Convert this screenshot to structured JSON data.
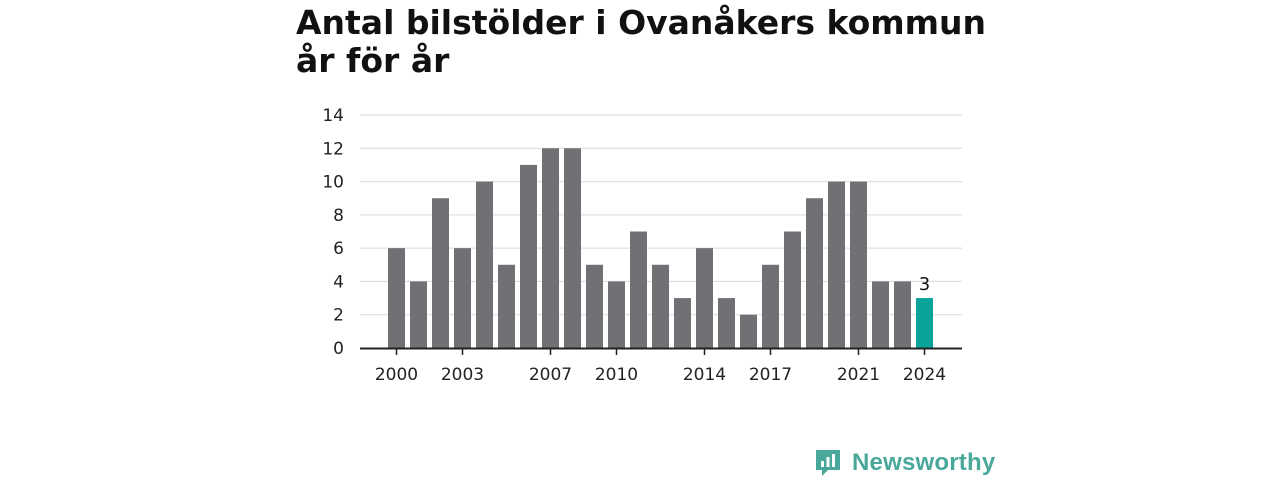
{
  "chart_data": {
    "type": "bar",
    "title": "Antal bilstölder i Ovanåkers kommun år för år",
    "categories": [
      "2000",
      "2001",
      "2002",
      "2003",
      "2004",
      "2005",
      "2006",
      "2007",
      "2008",
      "2009",
      "2010",
      "2011",
      "2012",
      "2013",
      "2014",
      "2015",
      "2016",
      "2017",
      "2018",
      "2019",
      "2020",
      "2021",
      "2022",
      "2023",
      "2024"
    ],
    "values": [
      6,
      4,
      9,
      6,
      10,
      5,
      11,
      12,
      12,
      5,
      4,
      7,
      5,
      3,
      6,
      3,
      2,
      5,
      7,
      9,
      10,
      10,
      4,
      4,
      3
    ],
    "x_tick_labels": [
      "2000",
      "2003",
      "2007",
      "2010",
      "2014",
      "2017",
      "2021",
      "2024"
    ],
    "y_ticks": [
      0,
      2,
      4,
      6,
      8,
      10,
      12,
      14
    ],
    "ylim": [
      0,
      14
    ],
    "grid": true,
    "highlight": {
      "category": "2024",
      "value_label": "3"
    },
    "colors": {
      "bar": "#707075",
      "highlight": "#0aa39a",
      "grid": "#d9d9d9",
      "axis": "#222222"
    }
  },
  "brand": {
    "name": "Newsworthy",
    "icon": "newsworthy-logo-icon",
    "color": "#4aa89b"
  }
}
